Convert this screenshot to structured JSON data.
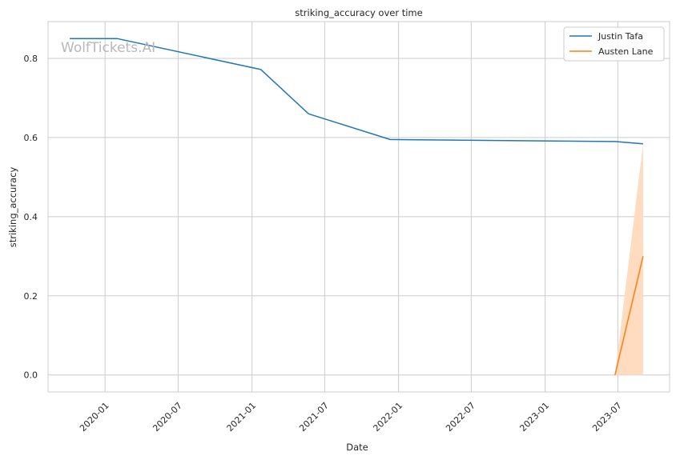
{
  "chart_data": {
    "type": "line",
    "title": "striking_accuracy over time",
    "xlabel": "Date",
    "ylabel": "striking_accuracy",
    "watermark": "WolfTickets.AI",
    "x_ticks": [
      "2020-01",
      "2020-07",
      "2021-01",
      "2021-07",
      "2022-01",
      "2022-07",
      "2023-01",
      "2023-07"
    ],
    "y_ticks": [
      "0.0",
      "0.2",
      "0.4",
      "0.6",
      "0.8"
    ],
    "xlim": [
      "2019-08-12",
      "2023-11-07"
    ],
    "ylim": [
      -0.043,
      0.893
    ],
    "grid": true,
    "legend_position": "top-right",
    "series": [
      {
        "name": "Justin Tafa",
        "color": "#1f77b4",
        "x": [
          "2019-10-05",
          "2020-02-01",
          "2021-01-23",
          "2021-05-22",
          "2021-12-11",
          "2023-06-24",
          "2023-09-02"
        ],
        "y": [
          0.85,
          0.85,
          0.772,
          0.66,
          0.595,
          0.59,
          0.584
        ]
      },
      {
        "name": "Austen Lane",
        "color": "#ff7f0e",
        "x": [
          "2023-06-24",
          "2023-09-02"
        ],
        "y": [
          0.0,
          0.3
        ],
        "band": {
          "color": "#ffdcbf",
          "lower": [
            0.0,
            0.0
          ],
          "upper": [
            0.0,
            0.584
          ]
        }
      }
    ]
  }
}
